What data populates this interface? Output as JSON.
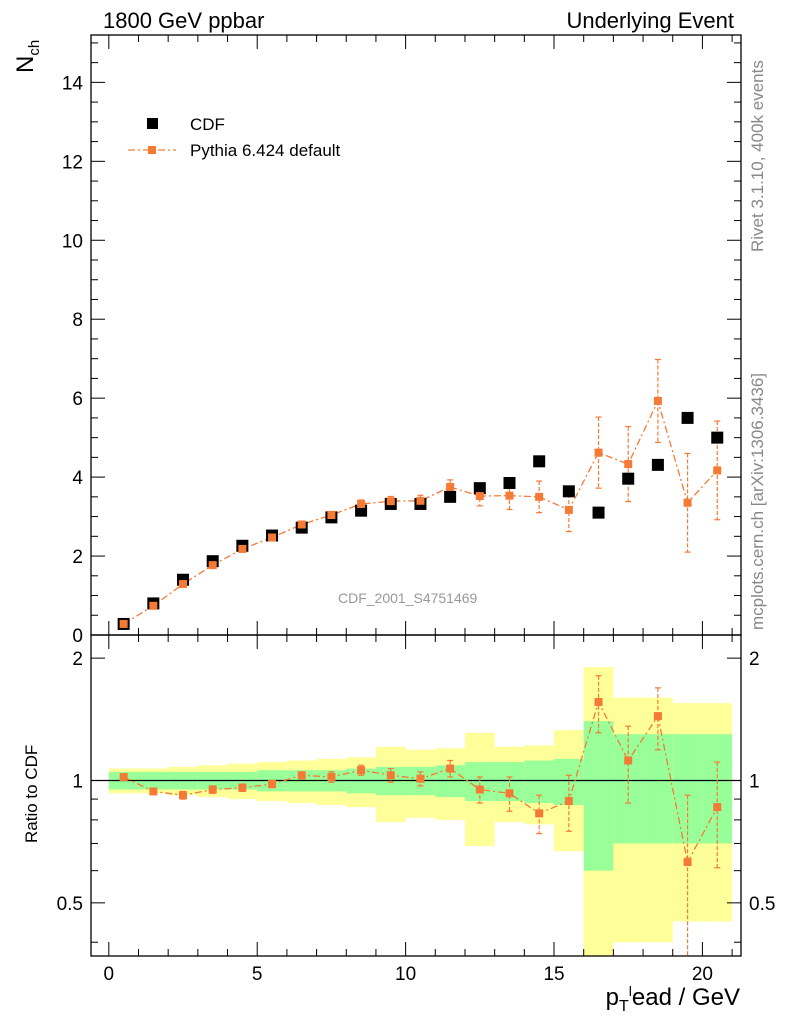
{
  "header": {
    "left": "1800 GeV ppbar",
    "right": "Underlying Event"
  },
  "side_text": {
    "rivet": "Rivet 3.1.10,  400k events",
    "mcplots": "mcplots.cern.ch [arXiv:1306.3436]"
  },
  "watermark": "CDF_2001_S4751469",
  "main_ylabel": "N",
  "main_ylabel_sub": "ch",
  "ratio_ylabel": "Ratio to CDF",
  "xlabel": {
    "p": "p",
    "sub": "T",
    "sup": "l",
    "rest": "ead / GeV"
  },
  "legend": {
    "data_label": "CDF",
    "mc_label": "Pythia 6.424 default"
  },
  "colors": {
    "mc": "#f47a36",
    "band_inner": "#99ff99",
    "band_outer": "#ffff99",
    "data": "#000000"
  },
  "chart_data": [
    {
      "type": "scatter",
      "panel": "main",
      "xlim": [
        -0.6,
        21.3
      ],
      "ylim": [
        0,
        15.2
      ],
      "xticks": [
        "0",
        "5",
        "10",
        "15",
        "20"
      ],
      "yticks": [
        "0",
        "2",
        "4",
        "6",
        "8",
        "10",
        "12",
        "14"
      ],
      "data_series": {
        "name": "CDF",
        "x": [
          0.5,
          1.5,
          2.5,
          3.5,
          4.5,
          5.5,
          6.5,
          7.5,
          8.5,
          9.5,
          10.5,
          11.5,
          12.5,
          13.5,
          14.5,
          15.5,
          16.5,
          17.5,
          18.5,
          19.5,
          20.5
        ],
        "y": [
          0.28,
          0.8,
          1.4,
          1.87,
          2.26,
          2.52,
          2.72,
          2.98,
          3.15,
          3.32,
          3.32,
          3.5,
          3.72,
          3.85,
          4.4,
          3.64,
          3.1,
          3.96,
          4.31,
          5.5,
          5.0
        ]
      },
      "mc_series": {
        "name": "Pythia 6.424 default",
        "x": [
          0.5,
          1.5,
          2.5,
          3.5,
          4.5,
          5.5,
          6.5,
          7.5,
          8.5,
          9.5,
          10.5,
          11.5,
          12.5,
          13.5,
          14.5,
          15.5,
          16.5,
          17.5,
          18.5,
          19.5,
          20.5
        ],
        "y": [
          0.28,
          0.74,
          1.29,
          1.77,
          2.18,
          2.47,
          2.8,
          3.04,
          3.32,
          3.39,
          3.4,
          3.75,
          3.52,
          3.53,
          3.5,
          3.17,
          4.62,
          4.33,
          5.93,
          3.35,
          4.17
        ],
        "err": [
          0.02,
          0.03,
          0.04,
          0.05,
          0.06,
          0.07,
          0.08,
          0.09,
          0.1,
          0.12,
          0.14,
          0.18,
          0.25,
          0.35,
          0.4,
          0.55,
          0.9,
          0.95,
          1.05,
          1.25,
          1.25
        ]
      }
    },
    {
      "type": "ratio",
      "panel": "ratio",
      "xlim": [
        -0.6,
        21.3
      ],
      "ylim": [
        0.37,
        2.28
      ],
      "yticks": [
        "0.5",
        "1",
        "2"
      ],
      "x": [
        0.5,
        1.5,
        2.5,
        3.5,
        4.5,
        5.5,
        6.5,
        7.5,
        8.5,
        9.5,
        10.5,
        11.5,
        12.5,
        13.5,
        14.5,
        15.5,
        16.5,
        17.5,
        18.5,
        19.5,
        20.5
      ],
      "mc_ratio": [
        1.02,
        0.94,
        0.92,
        0.95,
        0.96,
        0.98,
        1.03,
        1.02,
        1.06,
        1.03,
        1.01,
        1.07,
        0.95,
        0.93,
        0.83,
        0.89,
        1.56,
        1.12,
        1.44,
        0.63,
        0.86
      ],
      "mc_ratio_err": [
        0.01,
        0.01,
        0.02,
        0.02,
        0.02,
        0.02,
        0.02,
        0.03,
        0.03,
        0.04,
        0.04,
        0.05,
        0.07,
        0.09,
        0.09,
        0.14,
        0.25,
        0.24,
        0.25,
        0.29,
        0.25
      ],
      "band_inner": [
        0.05,
        0.05,
        0.05,
        0.05,
        0.05,
        0.06,
        0.06,
        0.06,
        0.07,
        0.08,
        0.08,
        0.09,
        0.11,
        0.11,
        0.12,
        0.13,
        0.4,
        0.3,
        0.3,
        0.3,
        0.3
      ],
      "band_outer": [
        0.07,
        0.07,
        0.08,
        0.09,
        0.1,
        0.11,
        0.12,
        0.13,
        0.14,
        0.21,
        0.19,
        0.2,
        0.31,
        0.21,
        0.22,
        0.33,
        0.9,
        0.6,
        0.6,
        0.55,
        0.55
      ]
    }
  ]
}
